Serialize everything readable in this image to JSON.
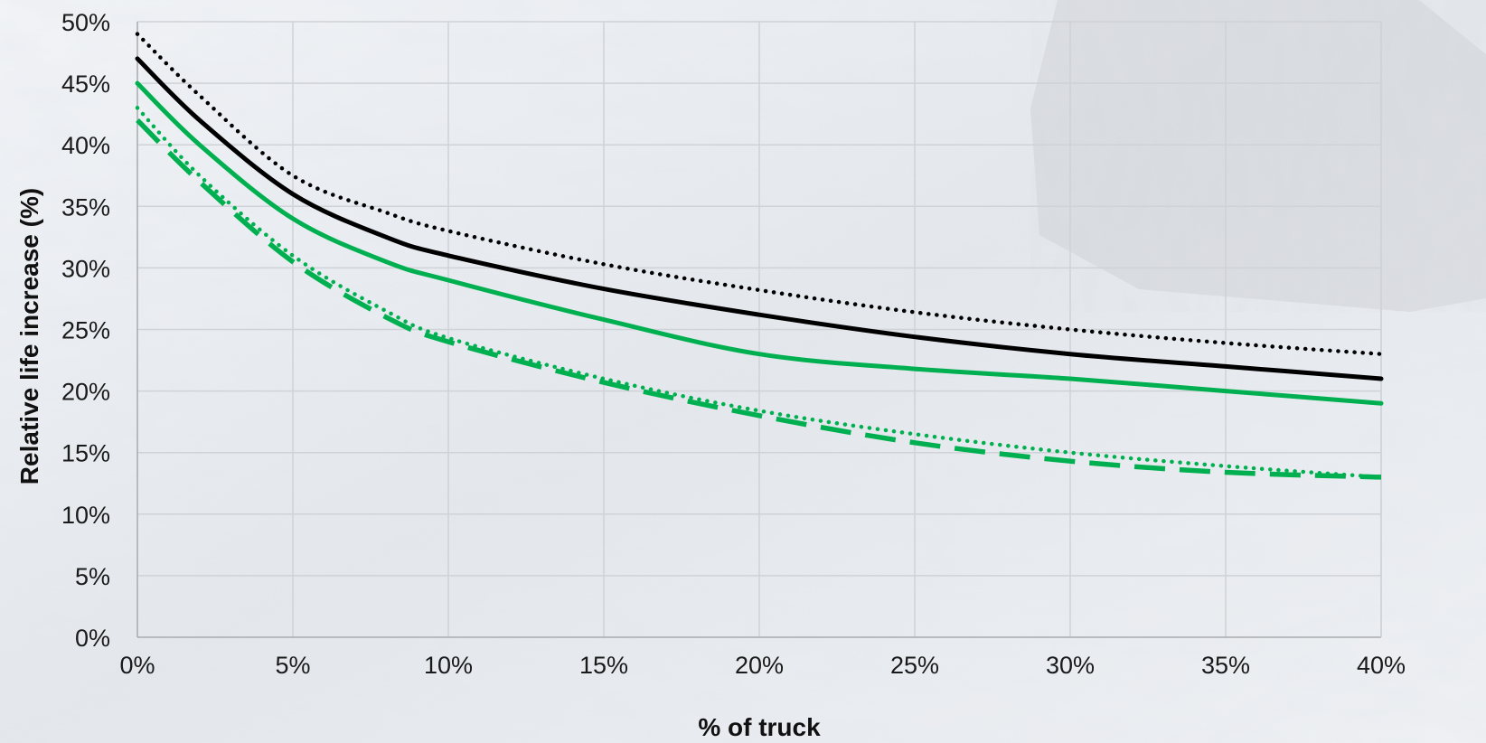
{
  "chart_data": {
    "type": "line",
    "xlabel": "% of truck",
    "ylabel": "Relative life increase (%)",
    "x_tick_labels": [
      "0%",
      "5%",
      "10%",
      "15%",
      "20%",
      "25%",
      "30%",
      "35%",
      "40%"
    ],
    "y_tick_labels": [
      "0%",
      "5%",
      "10%",
      "15%",
      "20%",
      "25%",
      "30%",
      "35%",
      "40%",
      "45%",
      "50%"
    ],
    "xlim": [
      0,
      40
    ],
    "ylim": [
      0,
      50
    ],
    "grid": true,
    "legend": "none",
    "series": [
      {
        "color": "#000000",
        "style": "dotted",
        "x": [
          0,
          2,
          5,
          8,
          10,
          15,
          20,
          25,
          30,
          35,
          40
        ],
        "y": [
          49,
          44,
          37.5,
          34.5,
          33,
          30.3,
          28.2,
          26.4,
          25,
          23.9,
          23
        ]
      },
      {
        "color": "#000000",
        "style": "solid",
        "x": [
          0,
          2,
          5,
          8,
          10,
          15,
          20,
          25,
          30,
          35,
          40
        ],
        "y": [
          47,
          42,
          36,
          32.5,
          31,
          28.3,
          26.2,
          24.4,
          23,
          22,
          21
        ]
      },
      {
        "color": "#00b050",
        "style": "solid",
        "x": [
          0,
          2,
          5,
          8,
          10,
          15,
          20,
          25,
          30,
          35,
          40
        ],
        "y": [
          45,
          40,
          34,
          30.5,
          29,
          25.8,
          23,
          21.8,
          21,
          20,
          19
        ]
      },
      {
        "color": "#00b050",
        "style": "dotted",
        "x": [
          0,
          2,
          5,
          8,
          10,
          15,
          20,
          25,
          30,
          35,
          40
        ],
        "y": [
          43,
          37.5,
          31,
          26.5,
          24.3,
          21,
          18.4,
          16.5,
          15,
          13.9,
          13
        ]
      },
      {
        "color": "#00b050",
        "style": "dashed",
        "x": [
          0,
          2,
          5,
          8,
          10,
          15,
          20,
          25,
          30,
          35,
          40
        ],
        "y": [
          42,
          37,
          30.5,
          26,
          24,
          20.7,
          18,
          15.8,
          14.3,
          13.4,
          13
        ]
      }
    ]
  }
}
